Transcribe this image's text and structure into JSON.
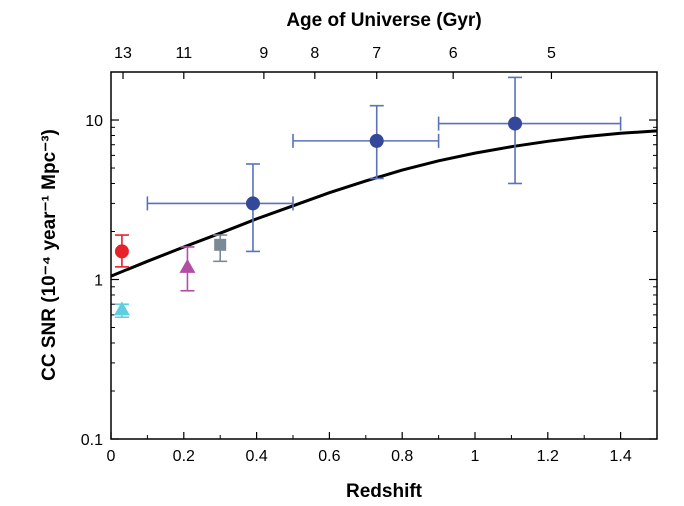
{
  "chart_data": {
    "type": "scatter",
    "xlabel": "Redshift",
    "ylabel": "CC SNR (10⁻⁴ year⁻¹ Mpc⁻³)",
    "top_axis_label": "Age of Universe (Gyr)",
    "xlim": [
      0,
      1.5
    ],
    "ylim": [
      0.1,
      20
    ],
    "yscale": "log",
    "grid": false,
    "x_ticks": [
      {
        "value": 0,
        "label": "0"
      },
      {
        "value": 0.2,
        "label": "0.2"
      },
      {
        "value": 0.4,
        "label": "0.4"
      },
      {
        "value": 0.6,
        "label": "0.6"
      },
      {
        "value": 0.8,
        "label": "0.8"
      },
      {
        "value": 1.0,
        "label": "1"
      },
      {
        "value": 1.2,
        "label": "1.2"
      },
      {
        "value": 1.4,
        "label": "1.4"
      }
    ],
    "y_ticks": [
      {
        "value": 0.1,
        "label": "0.1"
      },
      {
        "value": 1,
        "label": "1"
      },
      {
        "value": 10,
        "label": "10"
      }
    ],
    "top_ticks": [
      {
        "z": 0.033,
        "label": "13"
      },
      {
        "z": 0.2,
        "label": "11"
      },
      {
        "z": 0.42,
        "label": "9"
      },
      {
        "z": 0.56,
        "label": "8"
      },
      {
        "z": 0.73,
        "label": "7"
      },
      {
        "z": 0.94,
        "label": "6"
      },
      {
        "z": 1.21,
        "label": "5"
      }
    ],
    "model_curve": {
      "x": [
        0,
        0.1,
        0.2,
        0.3,
        0.4,
        0.5,
        0.6,
        0.7,
        0.8,
        0.9,
        1.0,
        1.1,
        1.2,
        1.3,
        1.4,
        1.5
      ],
      "y": [
        1.05,
        1.3,
        1.6,
        1.95,
        2.4,
        2.9,
        3.5,
        4.15,
        4.85,
        5.55,
        6.2,
        6.8,
        7.35,
        7.85,
        8.25,
        8.55
      ]
    },
    "points": [
      {
        "x": 0.03,
        "y": 1.5,
        "y_lo": 1.2,
        "y_hi": 1.9,
        "marker": "circle",
        "color": "#e8202a"
      },
      {
        "x": 0.03,
        "y": 0.65,
        "y_lo": 0.58,
        "y_hi": 0.7,
        "marker": "triangle",
        "color": "#5fcfe0"
      },
      {
        "x": 0.21,
        "y": 1.2,
        "y_lo": 0.85,
        "y_hi": 1.6,
        "marker": "triangle",
        "color": "#b24fa5"
      },
      {
        "x": 0.3,
        "y": 1.65,
        "y_lo": 1.3,
        "y_hi": 1.9,
        "marker": "square",
        "color": "#7b8a96"
      },
      {
        "x": 0.39,
        "y": 3.0,
        "y_lo": 1.5,
        "y_hi": 5.3,
        "x_lo": 0.1,
        "x_hi": 0.5,
        "marker": "circle",
        "color": "#34489a"
      },
      {
        "x": 0.73,
        "y": 7.4,
        "y_lo": 4.3,
        "y_hi": 12.3,
        "x_lo": 0.5,
        "x_hi": 0.9,
        "marker": "circle",
        "color": "#34489a"
      },
      {
        "x": 1.11,
        "y": 9.5,
        "y_lo": 4.0,
        "y_hi": 18.5,
        "x_lo": 0.9,
        "x_hi": 1.4,
        "marker": "circle",
        "color": "#34489a"
      }
    ],
    "colors": {
      "errorbar_blue": "#5a73b8",
      "curve": "#000000"
    }
  }
}
